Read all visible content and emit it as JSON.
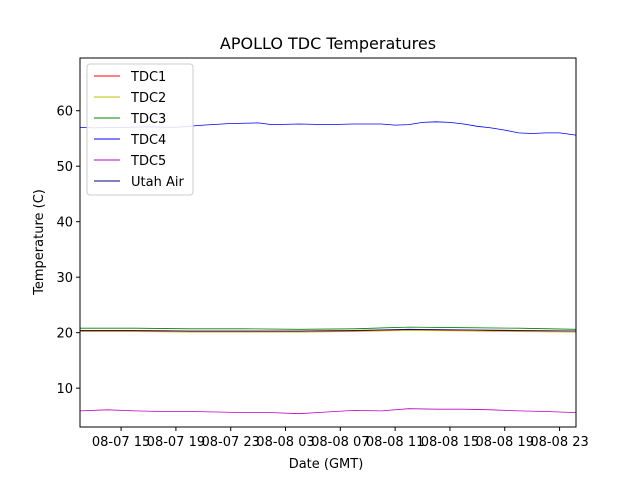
{
  "chart_data": {
    "type": "line",
    "title": "APOLLO TDC Temperatures",
    "xlabel": "Date (GMT)",
    "ylabel": "Temperature (C)",
    "xlim": [
      12.0,
      48.2
    ],
    "ylim": [
      3.0,
      69.5
    ],
    "x_units": "hours since 08-07 00:00 GMT",
    "x_ticks": [
      {
        "value": 15,
        "label": "08-07 15"
      },
      {
        "value": 19,
        "label": "08-07 19"
      },
      {
        "value": 23,
        "label": "08-07 23"
      },
      {
        "value": 27,
        "label": "08-08 03"
      },
      {
        "value": 31,
        "label": "08-08 07"
      },
      {
        "value": 35,
        "label": "08-08 11"
      },
      {
        "value": 39,
        "label": "08-08 15"
      },
      {
        "value": 43,
        "label": "08-08 19"
      },
      {
        "value": 47,
        "label": "08-08 23"
      }
    ],
    "y_ticks": [
      {
        "value": 10,
        "label": "10"
      },
      {
        "value": 20,
        "label": "20"
      },
      {
        "value": 30,
        "label": "30"
      },
      {
        "value": 40,
        "label": "40"
      },
      {
        "value": 50,
        "label": "50"
      },
      {
        "value": 60,
        "label": "60"
      }
    ],
    "legend_position": "top-left",
    "series": [
      {
        "name": "TDC1",
        "color": "#ff0000",
        "x": [
          12,
          16,
          20,
          24,
          28,
          32,
          36,
          40,
          44,
          48.2
        ],
        "y": [
          20.3,
          20.3,
          20.2,
          20.2,
          20.2,
          20.3,
          20.5,
          20.4,
          20.3,
          20.3
        ]
      },
      {
        "name": "TDC2",
        "color": "#bfbf00",
        "x": [
          12,
          16,
          20,
          24,
          28,
          32,
          36,
          40,
          44,
          48.2
        ],
        "y": [
          20.2,
          20.2,
          20.1,
          20.1,
          20.1,
          20.2,
          20.4,
          20.3,
          20.2,
          20.1
        ]
      },
      {
        "name": "TDC3",
        "color": "#008000",
        "x": [
          12,
          16,
          20,
          24,
          28,
          32,
          36,
          40,
          44,
          48.2
        ],
        "y": [
          20.8,
          20.8,
          20.7,
          20.7,
          20.6,
          20.7,
          21.0,
          20.9,
          20.8,
          20.6
        ]
      },
      {
        "name": "TDC4",
        "color": "#0000ff",
        "x": [
          12,
          13,
          15,
          17,
          19,
          21,
          23,
          25,
          26,
          28,
          30,
          32,
          34,
          35,
          36,
          37,
          38,
          39,
          40,
          41,
          42,
          43,
          44,
          45,
          46,
          47,
          48.2
        ],
        "y": [
          57.0,
          56.9,
          57.0,
          57.1,
          57.0,
          57.4,
          57.7,
          57.8,
          57.5,
          57.6,
          57.5,
          57.6,
          57.6,
          57.4,
          57.5,
          57.9,
          58.0,
          57.9,
          57.6,
          57.2,
          56.9,
          56.5,
          56.0,
          55.9,
          56.0,
          56.0,
          55.6
        ]
      },
      {
        "name": "TDC5",
        "color": "#c000c0",
        "x": [
          12,
          14,
          16,
          18,
          20,
          22,
          24,
          26,
          28,
          30,
          32,
          34,
          36,
          38,
          40,
          42,
          44,
          46,
          48.2
        ],
        "y": [
          5.9,
          6.1,
          5.9,
          5.8,
          5.8,
          5.7,
          5.6,
          5.6,
          5.4,
          5.7,
          6.0,
          5.9,
          6.3,
          6.2,
          6.2,
          6.1,
          5.9,
          5.8,
          5.6
        ]
      },
      {
        "name": "Utah Air",
        "color": "#000080",
        "x": [
          12,
          16,
          20,
          24,
          28,
          32,
          36,
          40,
          44,
          48.2
        ],
        "y": [
          20.4,
          20.4,
          20.3,
          20.3,
          20.3,
          20.4,
          20.6,
          20.5,
          20.4,
          20.3
        ]
      }
    ]
  }
}
